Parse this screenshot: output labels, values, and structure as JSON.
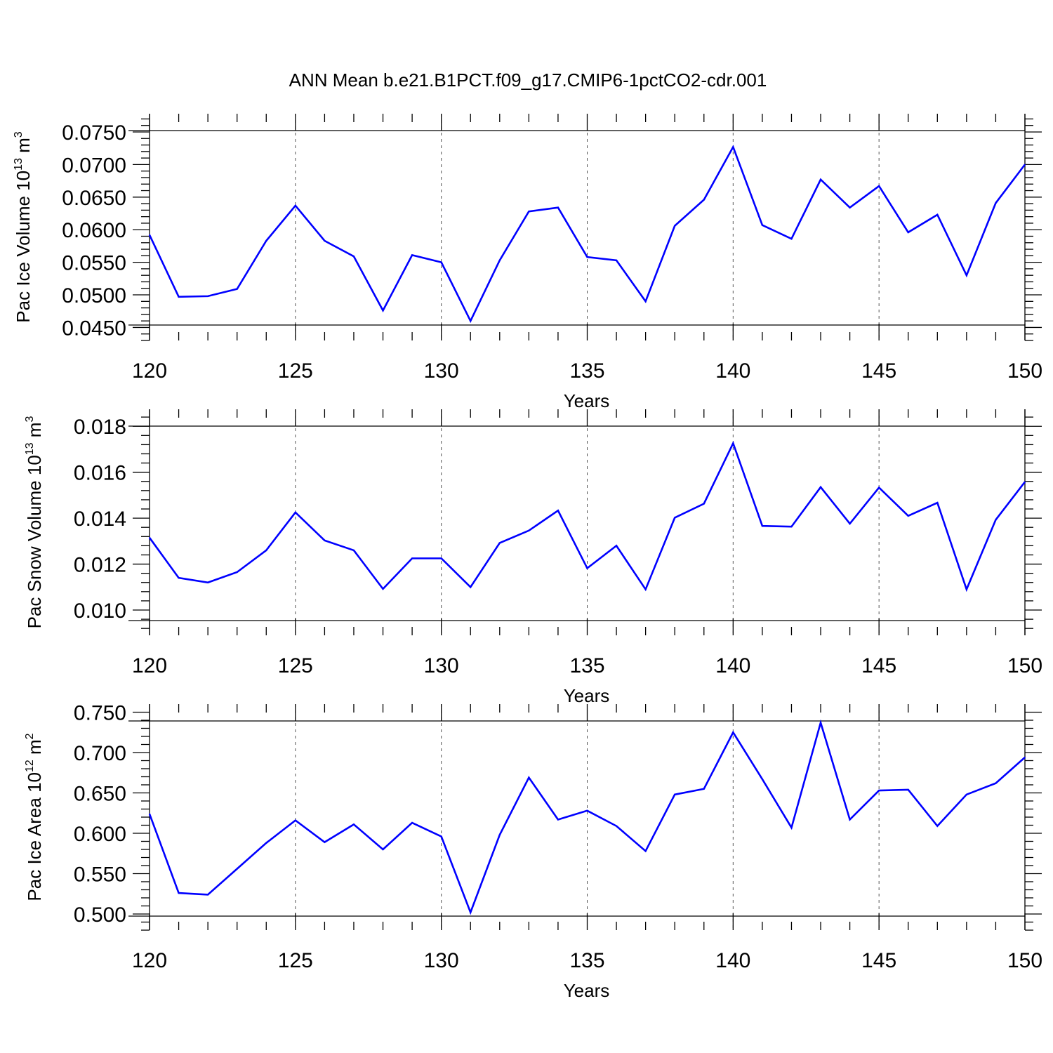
{
  "title": "ANN Mean b.e21.B1PCT.f09_g17.CMIP6-1pctCO2-cdr.001",
  "colors": {
    "series": "#0000ff",
    "axis": "#000000",
    "grid": "#555555"
  },
  "chart_data": [
    {
      "type": "line",
      "ylabel": {
        "text": "Pac Ice Volume 10",
        "sup": "13",
        "unit": " m",
        "unit_sup": "3"
      },
      "xlabel": "Years",
      "xlim": [
        120,
        150
      ],
      "ylim": [
        0.043,
        0.0778
      ],
      "xticks": [
        120,
        125,
        130,
        135,
        140,
        145,
        150
      ],
      "yticks": [
        "0.0450",
        "0.0500",
        "0.0550",
        "0.0600",
        "0.0650",
        "0.0700",
        "0.0750"
      ],
      "grid": "vertical dashed at major x ticks",
      "x": [
        120,
        121,
        122,
        123,
        124,
        125,
        126,
        127,
        128,
        129,
        130,
        131,
        132,
        133,
        134,
        135,
        136,
        137,
        138,
        139,
        140,
        141,
        142,
        143,
        144,
        145,
        146,
        147,
        148,
        149,
        150
      ],
      "series": [
        {
          "values": [
            0.0592,
            0.0497,
            0.0498,
            0.0509,
            0.0583,
            0.0637,
            0.0583,
            0.0559,
            0.0476,
            0.0561,
            0.055,
            0.046,
            0.0553,
            0.0628,
            0.0634,
            0.0558,
            0.0553,
            0.049,
            0.0606,
            0.0646,
            0.0727,
            0.0607,
            0.0586,
            0.0677,
            0.0634,
            0.0667,
            0.0596,
            0.0623,
            0.053,
            0.0641,
            0.07
          ]
        }
      ]
    },
    {
      "type": "line",
      "ylabel": {
        "text": "Pac Snow Volume 10",
        "sup": "13",
        "unit": " m",
        "unit_sup": "3"
      },
      "xlabel": "Years",
      "xlim": [
        120,
        150
      ],
      "ylim": [
        0.0089,
        0.01874
      ],
      "xticks": [
        120,
        125,
        130,
        135,
        140,
        145,
        150
      ],
      "yticks": [
        "0.010",
        "0.012",
        "0.014",
        "0.016",
        "0.018"
      ],
      "grid": "vertical dashed at major x ticks",
      "x": [
        120,
        121,
        122,
        123,
        124,
        125,
        126,
        127,
        128,
        129,
        130,
        131,
        132,
        133,
        134,
        135,
        136,
        137,
        138,
        139,
        140,
        141,
        142,
        143,
        144,
        145,
        146,
        147,
        148,
        149,
        150
      ],
      "series": [
        {
          "values": [
            0.01315,
            0.0114,
            0.0112,
            0.01165,
            0.0126,
            0.01425,
            0.01303,
            0.0126,
            0.01092,
            0.01225,
            0.01225,
            0.011,
            0.01292,
            0.01346,
            0.01433,
            0.01182,
            0.0128,
            0.0109,
            0.01402,
            0.01463,
            0.01726,
            0.01366,
            0.01363,
            0.01535,
            0.01376,
            0.01533,
            0.0141,
            0.01467,
            0.0109,
            0.01393,
            0.01558
          ]
        }
      ]
    },
    {
      "type": "line",
      "ylabel": {
        "text": "Pac Ice Area 10",
        "sup": "12",
        "unit": " m",
        "unit_sup": "2"
      },
      "xlabel": "Years",
      "xlim": [
        120,
        150
      ],
      "ylim": [
        0.48,
        0.76
      ],
      "xticks": [
        120,
        125,
        130,
        135,
        140,
        145,
        150
      ],
      "yticks": [
        "0.500",
        "0.550",
        "0.600",
        "0.650",
        "0.700",
        "0.750"
      ],
      "grid": "vertical dashed at major x ticks",
      "x": [
        120,
        121,
        122,
        123,
        124,
        125,
        126,
        127,
        128,
        129,
        130,
        131,
        132,
        133,
        134,
        135,
        136,
        137,
        138,
        139,
        140,
        141,
        142,
        143,
        144,
        145,
        146,
        147,
        148,
        149,
        150
      ],
      "series": [
        {
          "values": [
            0.624,
            0.526,
            0.524,
            0.556,
            0.588,
            0.616,
            0.589,
            0.611,
            0.58,
            0.613,
            0.596,
            0.502,
            0.598,
            0.669,
            0.617,
            0.628,
            0.609,
            0.578,
            0.648,
            0.655,
            0.725,
            0.667,
            0.607,
            0.737,
            0.617,
            0.653,
            0.654,
            0.609,
            0.648,
            0.662,
            0.694
          ]
        }
      ]
    }
  ]
}
